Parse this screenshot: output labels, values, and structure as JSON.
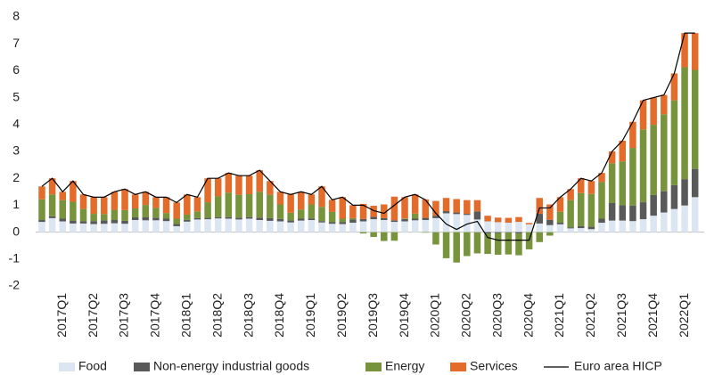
{
  "chart_data": {
    "type": "stacked-bar-line",
    "categories": [
      null,
      null,
      "2017Q1",
      null,
      null,
      "2017Q2",
      null,
      null,
      "2017Q3",
      null,
      null,
      "2017Q4",
      null,
      null,
      "2018Q1",
      null,
      null,
      "2018Q2",
      null,
      null,
      "2018Q3",
      null,
      null,
      "2018Q4",
      null,
      null,
      "2019Q1",
      null,
      null,
      "2019Q2",
      null,
      null,
      "2019Q3",
      null,
      null,
      "2019Q4",
      null,
      null,
      "2020Q1",
      null,
      null,
      "2020Q2",
      null,
      null,
      "2020Q3",
      null,
      null,
      "2020Q4",
      null,
      null,
      "2021Q1",
      null,
      null,
      "2021Q2",
      null,
      null,
      "2021Q3",
      null,
      null,
      "2021Q4",
      null,
      null,
      "2022Q1",
      null
    ],
    "series": [
      {
        "name": "Food",
        "color": "#dce6f2",
        "values": [
          0.38,
          0.52,
          0.4,
          0.32,
          0.32,
          0.3,
          0.31,
          0.33,
          0.31,
          0.45,
          0.44,
          0.44,
          0.41,
          0.22,
          0.39,
          0.47,
          0.48,
          0.51,
          0.5,
          0.47,
          0.5,
          0.45,
          0.42,
          0.4,
          0.36,
          0.43,
          0.45,
          0.36,
          0.31,
          0.3,
          0.35,
          0.4,
          0.48,
          0.45,
          0.38,
          0.4,
          0.44,
          0.45,
          0.52,
          0.7,
          0.67,
          0.64,
          0.47,
          0.4,
          0.37,
          0.35,
          0.38,
          0.29,
          0.32,
          0.26,
          0.29,
          0.14,
          0.15,
          0.11,
          0.35,
          0.43,
          0.43,
          0.41,
          0.48,
          0.61,
          0.73,
          0.86,
          0.99,
          1.3
        ]
      },
      {
        "name": "Non-energy industrial goods",
        "color": "#595959",
        "values": [
          0.07,
          0.07,
          0.1,
          0.11,
          0.08,
          0.11,
          0.13,
          0.12,
          0.11,
          0.1,
          0.11,
          0.1,
          0.09,
          0.08,
          0.07,
          0.05,
          0.05,
          0.05,
          0.06,
          0.07,
          0.06,
          0.09,
          0.1,
          0.09,
          0.08,
          0.07,
          0.06,
          0.05,
          0.07,
          0.08,
          0.12,
          0.09,
          0.09,
          0.07,
          0.06,
          0.09,
          0.06,
          0.08,
          0.09,
          0.08,
          0.06,
          0.04,
          0.3,
          -0.05,
          -0.03,
          -0.01,
          -0.05,
          0.0,
          0.36,
          0.2,
          0.06,
          0.04,
          0.07,
          0.09,
          0.15,
          0.65,
          0.57,
          0.58,
          0.63,
          0.77,
          0.79,
          0.89,
          0.98,
          1.05
        ]
      },
      {
        "name": "Energy",
        "color": "#77933c",
        "values": [
          0.77,
          0.81,
          0.69,
          0.7,
          0.46,
          0.27,
          0.23,
          0.38,
          0.4,
          0.33,
          0.46,
          0.36,
          0.21,
          0.2,
          0.19,
          0.25,
          0.58,
          0.77,
          0.91,
          0.85,
          0.85,
          0.96,
          0.87,
          0.54,
          0.28,
          0.34,
          0.52,
          0.53,
          0.37,
          0.12,
          0.05,
          -0.05,
          -0.18,
          -0.33,
          -0.32,
          0.02,
          0.19,
          -0.02,
          -0.46,
          -0.97,
          -1.13,
          -0.89,
          -0.79,
          -0.76,
          -0.81,
          -0.82,
          -0.81,
          -0.64,
          -0.37,
          -0.13,
          0.41,
          1.01,
          1.23,
          1.22,
          1.36,
          1.48,
          1.63,
          2.14,
          2.71,
          2.61,
          2.86,
          3.15,
          4.16,
          3.68
        ]
      },
      {
        "name": "Services",
        "color": "#e46c2b",
        "values": [
          0.48,
          0.6,
          0.31,
          0.77,
          0.54,
          0.62,
          0.63,
          0.67,
          0.78,
          0.52,
          0.49,
          0.4,
          0.59,
          0.6,
          0.75,
          0.53,
          0.89,
          0.67,
          0.73,
          0.71,
          0.69,
          0.8,
          0.51,
          0.47,
          0.68,
          0.66,
          0.37,
          0.76,
          0.45,
          0.8,
          0.48,
          0.56,
          0.41,
          0.51,
          0.88,
          0.79,
          0.71,
          0.69,
          0.55,
          0.49,
          0.5,
          0.51,
          0.42,
          0.21,
          0.17,
          0.18,
          0.18,
          0.05,
          0.59,
          0.57,
          0.54,
          0.41,
          0.55,
          0.48,
          0.34,
          0.44,
          0.77,
          0.97,
          1.08,
          1.01,
          0.72,
          1.0,
          1.27,
          1.37
        ]
      },
      {
        "name": "Euro area HICP",
        "color": "#000000",
        "type": "line",
        "values": [
          1.7,
          2.0,
          1.5,
          1.9,
          1.4,
          1.3,
          1.3,
          1.5,
          1.6,
          1.4,
          1.5,
          1.3,
          1.3,
          1.1,
          1.4,
          1.3,
          2.0,
          2.0,
          2.2,
          2.1,
          2.1,
          2.3,
          1.9,
          1.5,
          1.4,
          1.5,
          1.4,
          1.7,
          1.2,
          1.3,
          1.0,
          1.0,
          0.8,
          0.7,
          1.0,
          1.3,
          1.4,
          1.2,
          0.7,
          0.3,
          0.1,
          0.3,
          0.4,
          -0.2,
          -0.3,
          -0.3,
          -0.3,
          -0.3,
          0.9,
          0.9,
          1.3,
          1.6,
          2.0,
          1.9,
          2.2,
          3.0,
          3.4,
          4.1,
          4.9,
          5.0,
          5.1,
          5.9,
          7.4,
          7.4
        ]
      }
    ],
    "ylim": [
      -2,
      8
    ],
    "yticks": [
      -2,
      -1,
      0,
      1,
      2,
      3,
      4,
      5,
      6,
      7,
      8
    ],
    "legend": "bottom"
  }
}
